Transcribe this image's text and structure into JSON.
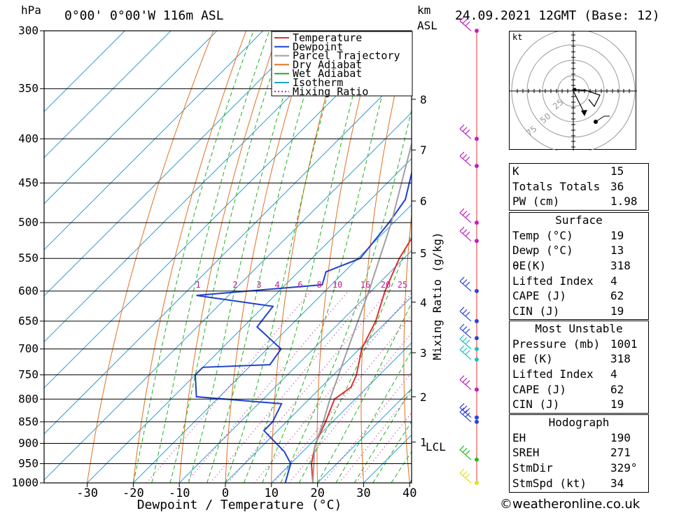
{
  "header": {
    "location": "0°00' 0°00'W  116m  ASL",
    "datetime": "24.09.2021  12GMT  (Base: 12)",
    "pressure_unit": "hPa",
    "height_unit_line1": "km",
    "height_unit_line2": "ASL"
  },
  "chart_data": {
    "type": "line",
    "title": "",
    "xlabel": "Dewpoint / Temperature (°C)",
    "ylabel": "hPa",
    "secondary_ylabel": "Mixing Ratio (g/kg)",
    "x_range": [
      -40,
      40
    ],
    "y_range": [
      1000,
      300
    ],
    "y_scale": "log",
    "skew": "temperature lines skewed 45° to the right",
    "pressure_ticks": [
      300,
      350,
      400,
      450,
      500,
      550,
      600,
      650,
      700,
      750,
      800,
      850,
      900,
      950,
      1000
    ],
    "temperature_ticks": [
      -30,
      -20,
      -10,
      0,
      10,
      20,
      30,
      40
    ],
    "height_ticks_km": [
      {
        "label": "8",
        "p": 360
      },
      {
        "label": "7",
        "p": 412
      },
      {
        "label": "6",
        "p": 472
      },
      {
        "label": "5",
        "p": 542
      },
      {
        "label": "4",
        "p": 618
      },
      {
        "label": "3",
        "p": 707
      },
      {
        "label": "2",
        "p": 795
      },
      {
        "label": "1",
        "p": 897
      }
    ],
    "lcl": {
      "label": "LCL",
      "p": 908
    },
    "mixing_ratio_labels": [
      "1",
      "2",
      "3",
      "4",
      "6",
      "8",
      "10",
      "16",
      "20",
      "25"
    ],
    "legend": {
      "placement": "top-center",
      "entries": [
        {
          "name": "Temperature",
          "color": "#e03030",
          "style": "solid"
        },
        {
          "name": "Dewpoint",
          "color": "#2040d0",
          "style": "solid"
        },
        {
          "name": "Parcel Trajectory",
          "color": "#a0a0a0",
          "style": "solid"
        },
        {
          "name": "Dry Adiabat",
          "color": "#e07020",
          "style": "solid"
        },
        {
          "name": "Wet Adiabat",
          "color": "#20b020",
          "style": "solid"
        },
        {
          "name": "Isotherm",
          "color": "#20a0e0",
          "style": "solid"
        },
        {
          "name": "Mixing Ratio",
          "color": "#c02090",
          "style": "dotted"
        }
      ]
    },
    "series": [
      {
        "name": "Temperature",
        "color": "#e03030",
        "points": [
          {
            "p": 1000,
            "t": 19.0
          },
          {
            "p": 950,
            "t": 14.5
          },
          {
            "p": 900,
            "t": 11.0
          },
          {
            "p": 850,
            "t": 8.5
          },
          {
            "p": 800,
            "t": 5.5
          },
          {
            "p": 775,
            "t": 6.5
          },
          {
            "p": 750,
            "t": 5.0
          },
          {
            "p": 700,
            "t": 0.5
          },
          {
            "p": 650,
            "t": -2.5
          },
          {
            "p": 600,
            "t": -7.0
          },
          {
            "p": 550,
            "t": -11.0
          },
          {
            "p": 500,
            "t": -14.0
          },
          {
            "p": 470,
            "t": -16.5
          },
          {
            "p": 450,
            "t": -20.0
          },
          {
            "p": 400,
            "t": -26.5
          },
          {
            "p": 350,
            "t": -34.5
          },
          {
            "p": 300,
            "t": -42.0
          }
        ]
      },
      {
        "name": "Dewpoint",
        "color": "#2040d0",
        "points": [
          {
            "p": 1000,
            "t": 13.0
          },
          {
            "p": 950,
            "t": 10.0
          },
          {
            "p": 920,
            "t": 6.0
          },
          {
            "p": 870,
            "t": -3.0
          },
          {
            "p": 850,
            "t": -3.0
          },
          {
            "p": 810,
            "t": -5.0
          },
          {
            "p": 795,
            "t": -25.0
          },
          {
            "p": 750,
            "t": -30.0
          },
          {
            "p": 735,
            "t": -30.0
          },
          {
            "p": 730,
            "t": -16.0
          },
          {
            "p": 700,
            "t": -17.0
          },
          {
            "p": 660,
            "t": -27.0
          },
          {
            "p": 625,
            "t": -28.0
          },
          {
            "p": 607,
            "t": -47.0
          },
          {
            "p": 590,
            "t": -22.0
          },
          {
            "p": 570,
            "t": -24.0
          },
          {
            "p": 550,
            "t": -19.5
          },
          {
            "p": 500,
            "t": -21.0
          },
          {
            "p": 470,
            "t": -22.5
          },
          {
            "p": 400,
            "t": -32.5
          },
          {
            "p": 350,
            "t": -42.0
          },
          {
            "p": 320,
            "t": -52.0
          },
          {
            "p": 300,
            "t": -54.0
          }
        ]
      },
      {
        "name": "Parcel Trajectory",
        "color": "#a0a0a0",
        "points": [
          {
            "p": 1000,
            "t": 19.0
          },
          {
            "p": 908,
            "t": 11.5
          },
          {
            "p": 850,
            "t": 8.0
          },
          {
            "p": 800,
            "t": 4.5
          },
          {
            "p": 700,
            "t": -2.5
          },
          {
            "p": 600,
            "t": -10.5
          },
          {
            "p": 500,
            "t": -20.5
          },
          {
            "p": 400,
            "t": -34.0
          },
          {
            "p": 300,
            "t": -54.0
          }
        ]
      }
    ],
    "wind_profile": [
      {
        "p": 300,
        "color": "#c020c0"
      },
      {
        "p": 400,
        "color": "#c020c0"
      },
      {
        "p": 430,
        "color": "#c020c0"
      },
      {
        "p": 500,
        "color": "#c020c0"
      },
      {
        "p": 525,
        "color": "#c020c0"
      },
      {
        "p": 600,
        "color": "#3040e0"
      },
      {
        "p": 650,
        "color": "#3040e0"
      },
      {
        "p": 680,
        "color": "#3040e0"
      },
      {
        "p": 700,
        "color": "#20c0c0"
      },
      {
        "p": 720,
        "color": "#20c0c0"
      },
      {
        "p": 780,
        "color": "#c020c0"
      },
      {
        "p": 840,
        "color": "#3040e0"
      },
      {
        "p": 850,
        "color": "#3040e0"
      },
      {
        "p": 940,
        "color": "#20c020"
      },
      {
        "p": 1000,
        "color": "#e0e020"
      }
    ]
  },
  "hodograph": {
    "unit": "kt",
    "ring_labels": [
      "25",
      "50",
      "75"
    ]
  },
  "indices": [
    {
      "label": "K",
      "value": "15"
    },
    {
      "label": "Totals Totals",
      "value": "36"
    },
    {
      "label": "PW (cm)",
      "value": "1.98"
    }
  ],
  "surface": {
    "heading": "Surface",
    "rows": [
      {
        "label": "Temp (°C)",
        "value": "19"
      },
      {
        "label": "Dewp (°C)",
        "value": "13"
      },
      {
        "label": "θE(K)",
        "value": "318"
      },
      {
        "label": "Lifted Index",
        "value": "4"
      },
      {
        "label": "CAPE (J)",
        "value": "62"
      },
      {
        "label": "CIN (J)",
        "value": "19"
      }
    ]
  },
  "most_unstable": {
    "heading": "Most Unstable",
    "rows": [
      {
        "label": "Pressure (mb)",
        "value": "1001"
      },
      {
        "label": "θE (K)",
        "value": "318"
      },
      {
        "label": "Lifted Index",
        "value": "4"
      },
      {
        "label": "CAPE (J)",
        "value": "62"
      },
      {
        "label": "CIN (J)",
        "value": "19"
      }
    ]
  },
  "hodograph_box": {
    "heading": "Hodograph",
    "rows": [
      {
        "label": "EH",
        "value": "190"
      },
      {
        "label": "SREH",
        "value": "271"
      },
      {
        "label": "StmDir",
        "value": "329°"
      },
      {
        "label": "StmSpd (kt)",
        "value": "34"
      }
    ]
  },
  "footer": {
    "copyright": "©weatheronline.co.uk"
  }
}
